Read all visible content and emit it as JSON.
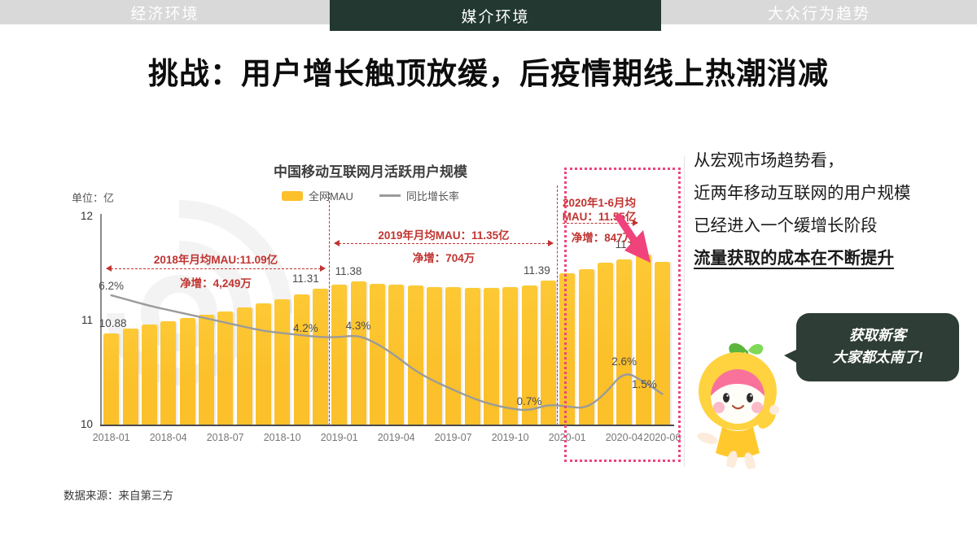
{
  "tabs": [
    {
      "label": "经济环境",
      "active": false
    },
    {
      "label": "媒介环境",
      "active": true
    },
    {
      "label": "大众行为趋势",
      "active": false
    }
  ],
  "title": "挑战：用户增长触顶放缓，后疫情期线上热潮消减",
  "chart": {
    "title": "中国移动互联网月活跃用户规模",
    "unit_label": "单位：亿",
    "legend_bar": "全网MAU",
    "legend_line": "同比增长率"
  },
  "chart_data": {
    "type": "bar",
    "title": "中国移动互联网月活跃用户规模",
    "ylabel": "单位：亿",
    "ylim": [
      10,
      12
    ],
    "yticks": [
      12,
      11,
      10
    ],
    "grid": false,
    "legend_position": "top-center",
    "categories": [
      "2018-01",
      "2018-02",
      "2018-03",
      "2018-04",
      "2018-05",
      "2018-06",
      "2018-07",
      "2018-08",
      "2018-09",
      "2018-10",
      "2018-11",
      "2018-12",
      "2019-01",
      "2019-02",
      "2019-03",
      "2019-04",
      "2019-05",
      "2019-06",
      "2019-07",
      "2019-08",
      "2019-09",
      "2019-10",
      "2019-11",
      "2019-12",
      "2020-01",
      "2020-02",
      "2020-03",
      "2020-04",
      "2020-05",
      "2020-06"
    ],
    "series": [
      {
        "name": "全网MAU",
        "type": "bar",
        "unit": "亿",
        "values": [
          10.88,
          10.93,
          10.97,
          11.0,
          11.03,
          11.06,
          11.09,
          11.13,
          11.17,
          11.21,
          11.26,
          11.31,
          11.35,
          11.38,
          11.36,
          11.35,
          11.34,
          11.33,
          11.33,
          11.32,
          11.32,
          11.33,
          11.34,
          11.39,
          11.46,
          11.5,
          11.56,
          11.59,
          11.64,
          11.57
        ]
      },
      {
        "name": "同比增长率",
        "type": "line",
        "unit": "%",
        "values": [
          6.2,
          5.95,
          5.7,
          5.5,
          5.3,
          5.1,
          4.9,
          4.7,
          4.5,
          4.4,
          4.3,
          4.2,
          4.2,
          4.3,
          3.9,
          3.3,
          2.6,
          2.1,
          1.7,
          1.3,
          1.0,
          0.8,
          0.7,
          1.0,
          0.9,
          0.8,
          1.5,
          2.6,
          2.1,
          1.5
        ]
      }
    ],
    "value_labels": [
      {
        "i": 0,
        "text": "10.88"
      },
      {
        "i": 11,
        "text": "11.31"
      },
      {
        "i": 13,
        "text": "11.38"
      },
      {
        "i": 23,
        "text": "11.39"
      },
      {
        "i": 28,
        "text": "11.64"
      }
    ],
    "pct_labels": [
      {
        "i": 0,
        "text": "6.2%"
      },
      {
        "i": 11,
        "text": "4.2%"
      },
      {
        "i": 13,
        "text": "4.3%"
      },
      {
        "i": 22,
        "text": "0.7%"
      },
      {
        "i": 27,
        "text": "2.6%"
      },
      {
        "i": 29,
        "text": "1.5%"
      }
    ],
    "x_ticks": [
      {
        "i": 0,
        "label": "2018-01"
      },
      {
        "i": 3,
        "label": "2018-04"
      },
      {
        "i": 6,
        "label": "2018-07"
      },
      {
        "i": 9,
        "label": "2018-10"
      },
      {
        "i": 12,
        "label": "2019-01"
      },
      {
        "i": 15,
        "label": "2019-04"
      },
      {
        "i": 18,
        "label": "2019-07"
      },
      {
        "i": 21,
        "label": "2019-10"
      },
      {
        "i": 24,
        "label": "2020-01"
      },
      {
        "i": 27,
        "label": "2020-04"
      },
      {
        "i": 29,
        "label": "2020-06"
      }
    ]
  },
  "annotations": {
    "y2018": {
      "line1": "2018年月均MAU:11.09亿",
      "line2": "净增：4,249万"
    },
    "y2019": {
      "line1": "2019年月均MAU：11.35亿",
      "line2": "净增：704万"
    },
    "y2020": {
      "line1": "2020年1-6月均",
      "line2": "MAU：11.55亿",
      "line3": "净增：847万"
    }
  },
  "insight": {
    "line1": "从宏观市场趋势看，",
    "line2": "近两年移动互联网的用户规模",
    "line3": "已经进入一个缓增长阶段",
    "line4": "流量获取的成本在不断提升"
  },
  "bubble": {
    "line1": "获取新客",
    "line2": "大家都太南了!"
  },
  "source": "数据来源：来自第三方",
  "colors": {
    "bar": "#FBC02A",
    "line": "#9B9B9B",
    "red": "#C03430",
    "pink": "#F0437B",
    "tab_active": "#223831",
    "tab_inactive": "#D9D9D9",
    "bubble": "#2E3D35"
  }
}
